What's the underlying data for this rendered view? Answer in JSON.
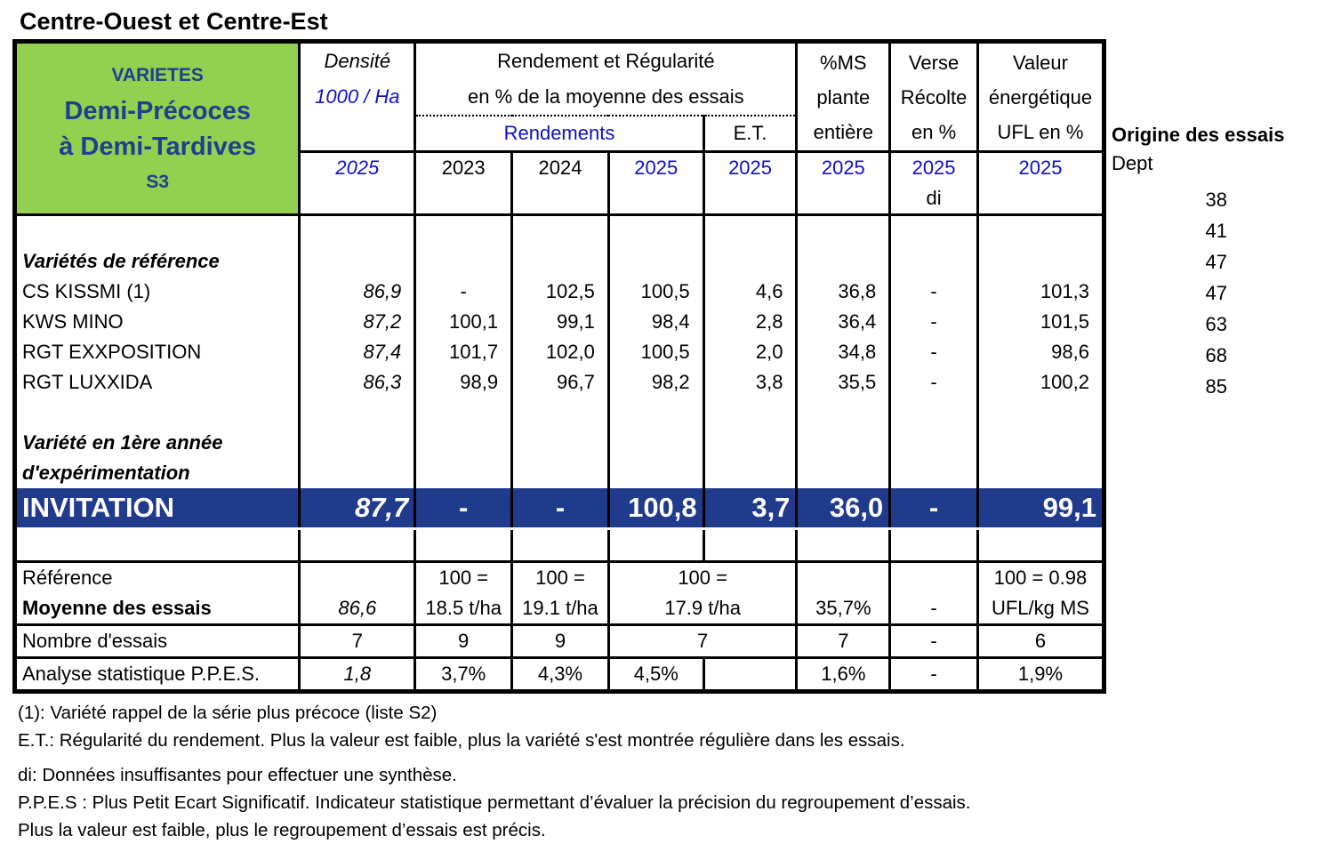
{
  "title": "Centre-Ouest et Centre-Est",
  "header": {
    "varietes": "VARIETES",
    "group1": "Demi-Précoces",
    "group2": "à Demi-Tardives",
    "series": "S3",
    "densite": "Densité",
    "densite_unit": "1000 / Ha",
    "rendement1": "Rendement et Régularité",
    "rendement2": "en % de la moyenne des essais",
    "rendements": "Rendements",
    "et": "E.T.",
    "ms1": "%MS",
    "ms2": "plante",
    "ms3": "entière",
    "verse1": "Verse",
    "verse2": "Récolte",
    "verse3": "en %",
    "val1": "Valeur",
    "val2": "énergétique",
    "val3": "UFL en %",
    "years": [
      "2025",
      "2023",
      "2024",
      "2025",
      "2025",
      "2025",
      "2025",
      "2025"
    ],
    "di": "di"
  },
  "sections": {
    "reference": "Variétés de référence",
    "first_year_1": "Variété en 1ère année",
    "first_year_2": "d'expérimentation"
  },
  "references": [
    [
      "CS KISSMI   (1)",
      "86,9",
      "-",
      "102,5",
      "100,5",
      "4,6",
      "36,8",
      "-",
      "101,3"
    ],
    [
      "KWS MINO",
      "87,2",
      "100,1",
      "99,1",
      "98,4",
      "2,8",
      "36,4",
      "-",
      "101,5"
    ],
    [
      "RGT EXXPOSITION",
      "87,4",
      "101,7",
      "102,0",
      "100,5",
      "2,0",
      "34,8",
      "-",
      "98,6"
    ],
    [
      "RGT LUXXIDA",
      "86,3",
      "98,9",
      "96,7",
      "98,2",
      "3,8",
      "35,5",
      "-",
      "100,2"
    ]
  ],
  "invitation": [
    "INVITATION",
    "87,7",
    "-",
    "-",
    "100,8",
    "3,7",
    "36,0",
    "-",
    "99,1"
  ],
  "footer": {
    "reference": "Référence",
    "moyenne": "Moyenne des essais",
    "moy_dens": "86,6",
    "eq": "100 =",
    "y2023": "18.5 t/ha",
    "y2024": "19.1 t/ha",
    "y2025": "17.9 t/ha",
    "ms": "35,7%",
    "verse": "-",
    "ufl1": "100 = 0.98",
    "ufl2": "UFL/kg MS",
    "nombre": "Nombre d'essais",
    "n": [
      "7",
      "9",
      "9",
      "7",
      "7",
      "-",
      "6"
    ],
    "analyse": "Analyse statistique P.P.E.S.",
    "p": [
      "1,8",
      "3,7%",
      "4,3%",
      "4,5%",
      "",
      "1,6%",
      "-",
      "1,9%"
    ]
  },
  "origin": {
    "title": "Origine des essais",
    "dept": "Dept",
    "values": [
      "38",
      "41",
      "47",
      "47",
      "63",
      "68",
      "85"
    ]
  },
  "notes": [
    "(1): Variété rappel de la série plus précoce (liste S2)",
    "E.T.: Régularité du rendement. Plus la valeur est faible, plus la variété s'est montrée régulière dans les essais.",
    "di: Données insuffisantes pour effectuer une synthèse.",
    "P.P.E.S : Plus Petit Ecart Significatif. Indicateur statistique permettant d’évaluer la précision du regroupement d’essais.",
    "Plus la valeur est faible, plus le regroupement d’essais est précis."
  ],
  "colors": {
    "green": "#92d050",
    "navy": "#203a8c",
    "year_blue": "#1010c0"
  }
}
